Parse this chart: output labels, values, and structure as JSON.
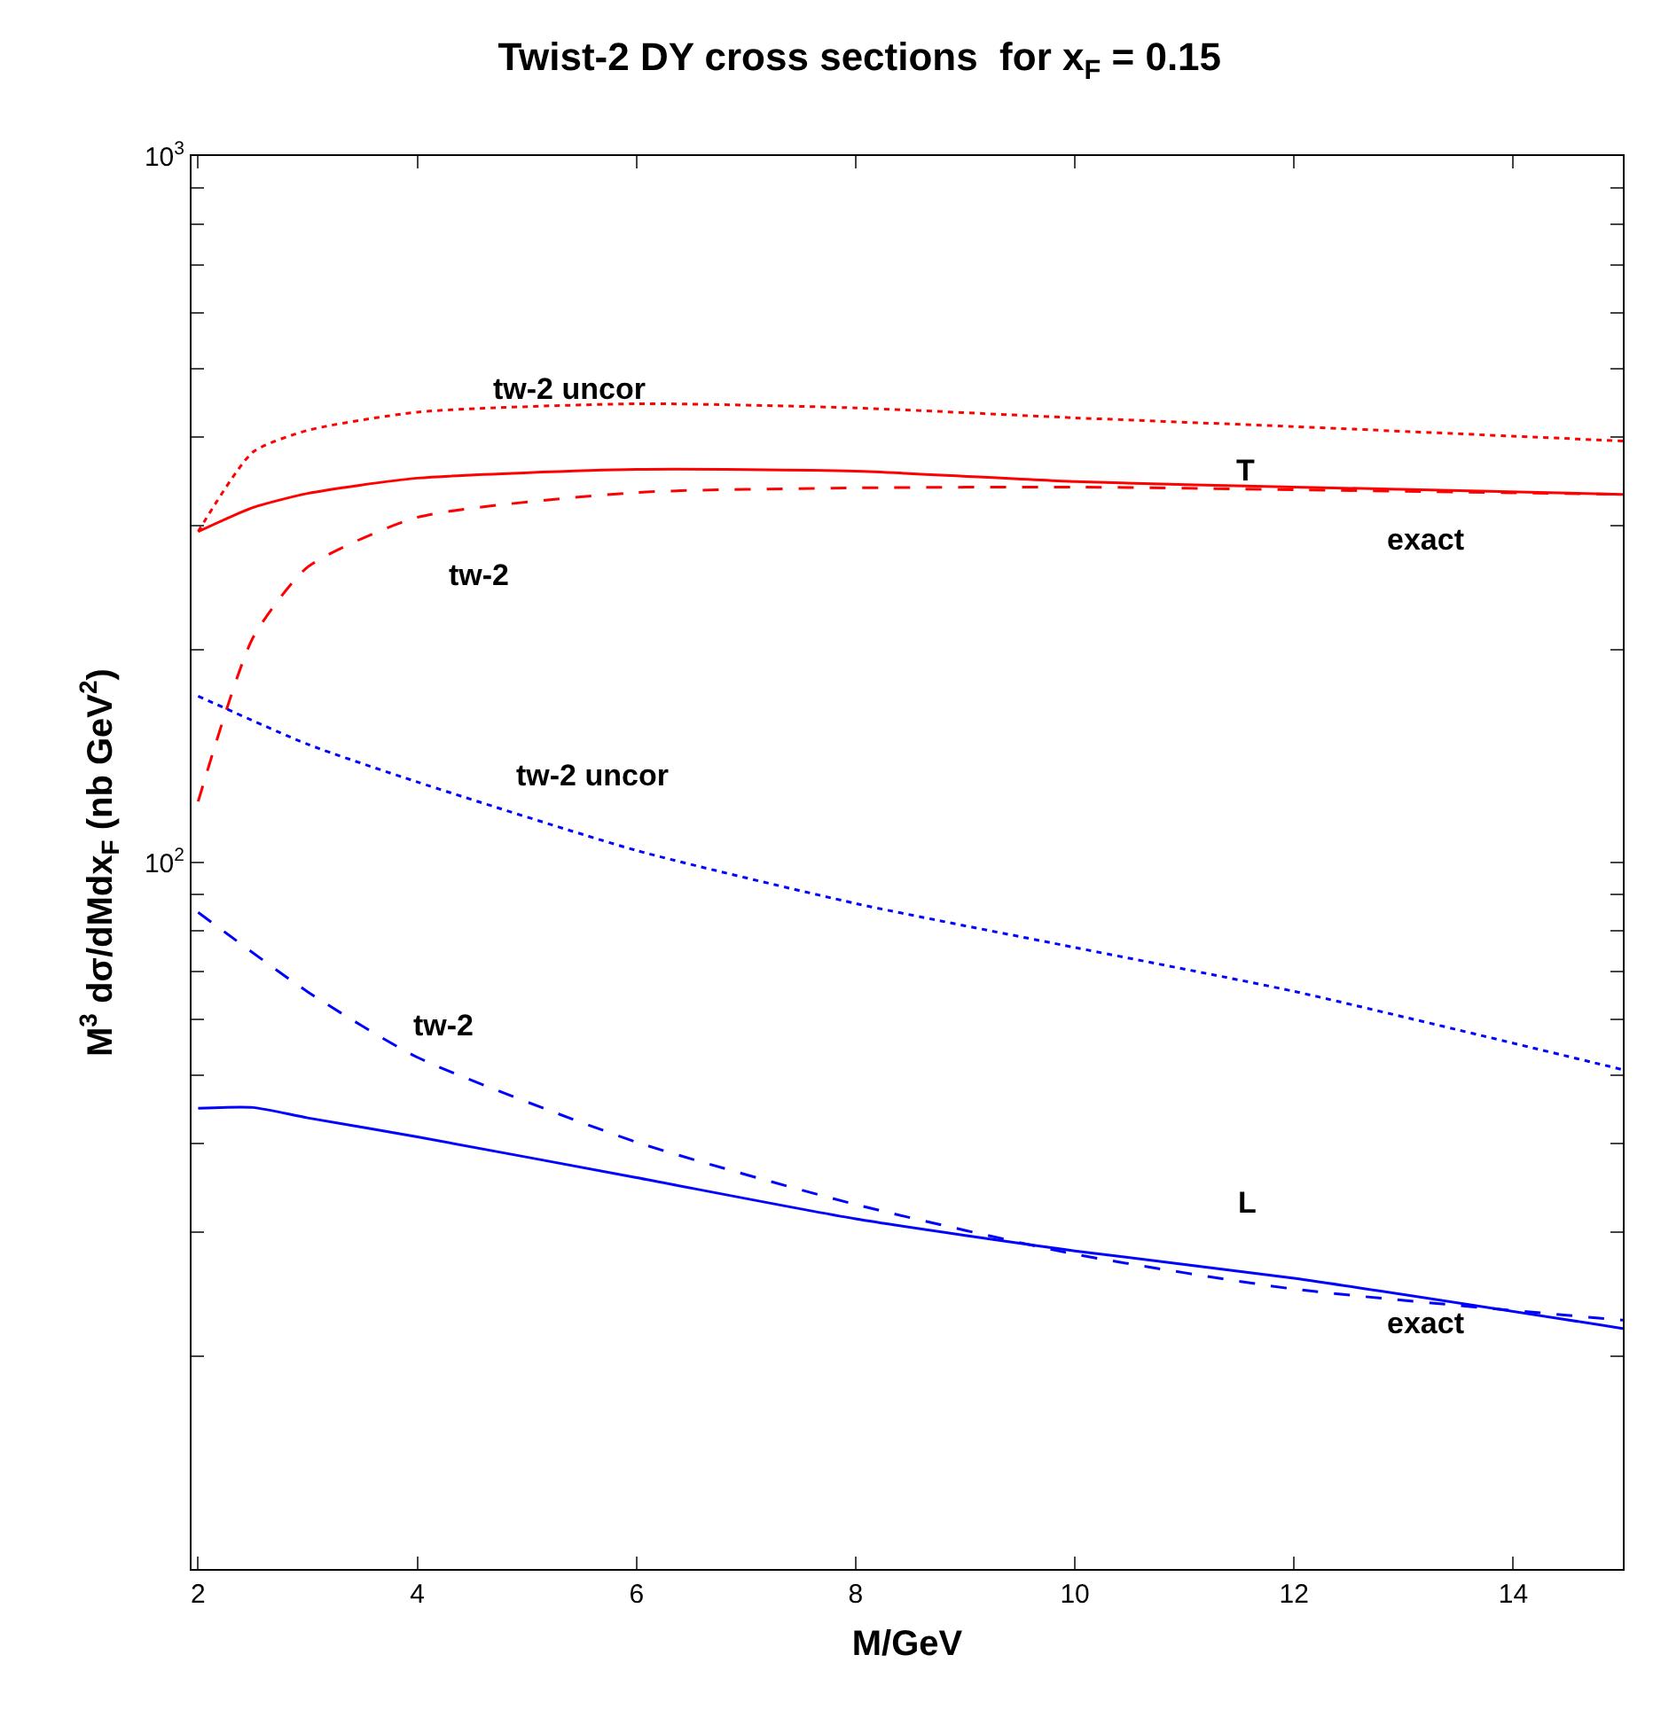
{
  "chart_data": {
    "type": "line",
    "title": "Twist-2 DY cross sections  for x$_{F}$ = 0.15",
    "xlabel": "M/GeV",
    "ylabel": "M$^{3}$ dσ/dMdx$_{F}$ (nb GeV$^{2}$)",
    "log": "y",
    "grid": false,
    "legend": false,
    "marker": "none",
    "xlim": [
      1.94,
      15
    ],
    "xticks": [
      2,
      4,
      6,
      8,
      10,
      12,
      14
    ],
    "ylim": [
      10,
      1000
    ],
    "yticks": [
      {
        "value": 20,
        "label": null
      },
      {
        "value": 30,
        "label": null
      },
      {
        "value": 40,
        "label": null
      },
      {
        "value": 50,
        "label": null
      },
      {
        "value": 60,
        "label": null
      },
      {
        "value": 70,
        "label": null
      },
      {
        "value": 80,
        "label": null
      },
      {
        "value": 90,
        "label": null
      },
      {
        "value": 100,
        "label": "10$^{2}$"
      },
      {
        "value": 200,
        "label": null
      },
      {
        "value": 300,
        "label": null
      },
      {
        "value": 400,
        "label": null
      },
      {
        "value": 500,
        "label": null
      },
      {
        "value": 600,
        "label": null
      },
      {
        "value": 700,
        "label": null
      },
      {
        "value": 800,
        "label": null
      },
      {
        "value": 900,
        "label": null
      },
      {
        "value": 1000,
        "label": "10$^{3}$"
      }
    ],
    "series": [
      {
        "name": "exact",
        "color": "#ff0000",
        "line_style": "solid",
        "x": [
          2,
          2.5,
          3,
          4,
          6,
          8,
          10,
          12,
          15
        ],
        "values": [
          294,
          318,
          333,
          350,
          360,
          358,
          346,
          340,
          332
        ]
      },
      {
        "name": "tw-2",
        "color": "#ff0000",
        "line_style": "dashed",
        "x": [
          2,
          2.5,
          3,
          4,
          6,
          8,
          10,
          12,
          15
        ],
        "values": [
          122,
          208,
          262,
          308,
          334,
          339,
          340,
          337,
          332
        ]
      },
      {
        "name": "tw-2 uncor",
        "color": "#ff0000",
        "line_style": "dotted",
        "x": [
          2,
          2.5,
          3,
          4,
          6,
          8,
          10,
          12,
          15
        ],
        "values": [
          294,
          381,
          409,
          434,
          446,
          440,
          426,
          414,
          395
        ]
      },
      {
        "name": "tw-2 uncor",
        "color": "#0000ff",
        "line_style": "dotted",
        "x": [
          2,
          3,
          4,
          6,
          8,
          10,
          12,
          15
        ],
        "values": [
          172,
          147,
          130,
          104,
          87.5,
          75.8,
          65.7,
          50.9
        ]
      },
      {
        "name": "tw-2",
        "color": "#0000ff",
        "line_style": "dashed",
        "x": [
          2,
          3,
          4,
          6,
          8,
          10,
          12,
          15
        ],
        "values": [
          85,
          65.6,
          53,
          40.2,
          32.8,
          27.9,
          24.9,
          22.5
        ]
      },
      {
        "name": "exact",
        "color": "#0000ff",
        "line_style": "solid",
        "x": [
          2,
          2.5,
          3,
          4,
          6,
          8,
          10,
          12,
          15
        ],
        "values": [
          44.9,
          45,
          43.5,
          40.9,
          35.8,
          31.3,
          28.2,
          25.8,
          21.9
        ]
      }
    ],
    "annotations": [
      "T",
      "L"
    ]
  }
}
